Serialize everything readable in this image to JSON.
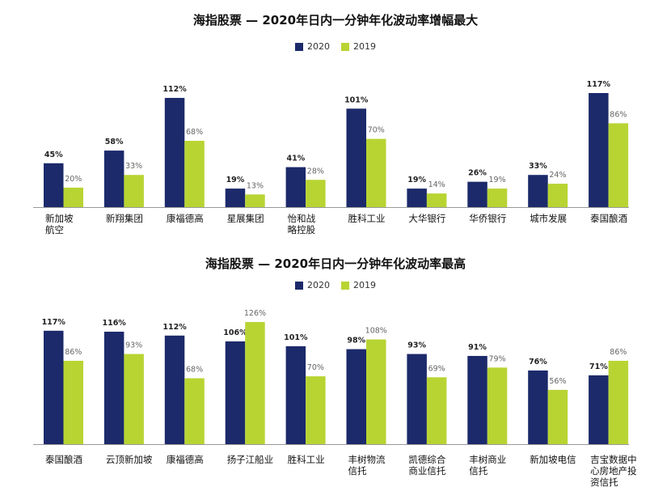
{
  "chart_data": [
    {
      "type": "bar",
      "title": "海指股票 — 2020年日内一分钟年化波动率增幅最大",
      "categories": [
        [
          "新加坡",
          "航空"
        ],
        [
          "新翔集团"
        ],
        [
          "康福德高"
        ],
        [
          "星展集团"
        ],
        [
          "怡和战",
          "略控股"
        ],
        [
          "胜科工业"
        ],
        [
          "大华银行"
        ],
        [
          "华侨银行"
        ],
        [
          "城市发展"
        ],
        [
          "泰国酿酒"
        ]
      ],
      "series": [
        {
          "name": "2020",
          "values": [
            45,
            58,
            112,
            19,
            41,
            101,
            19,
            26,
            33,
            117
          ],
          "labels": [
            "45%",
            "58%",
            "112%",
            "19%",
            "41%",
            "101%",
            "19%",
            "26%",
            "33%",
            "117%"
          ]
        },
        {
          "name": "2019",
          "values": [
            20,
            33,
            68,
            13,
            28,
            70,
            14,
            19,
            24,
            86
          ],
          "labels": [
            "20%",
            "33%",
            "68%",
            "13%",
            "28%",
            "70%",
            "14%",
            "19%",
            "24%",
            "86%"
          ]
        }
      ],
      "ylim": [
        0,
        117
      ],
      "grid": false,
      "legend": "top-center"
    },
    {
      "type": "bar",
      "title": "海指股票 — 2020年日内一分钟年化波动率最高",
      "categories": [
        [
          "泰国酿酒"
        ],
        [
          "云顶新加坡"
        ],
        [
          "康福德高"
        ],
        [
          "扬子江船业"
        ],
        [
          "胜科工业"
        ],
        [
          "丰树物流",
          "信托"
        ],
        [
          "凯德综合",
          "商业信托"
        ],
        [
          "丰树商业",
          "信托"
        ],
        [
          "新加坡电信"
        ],
        [
          "吉宝数据中",
          "心房地产投",
          "资信托"
        ]
      ],
      "series": [
        {
          "name": "2020",
          "values": [
            117,
            116,
            112,
            106,
            101,
            98,
            93,
            91,
            76,
            71
          ],
          "labels": [
            "117%",
            "116%",
            "112%",
            "106%",
            "101%",
            "98%",
            "93%",
            "91%",
            "76%",
            "71%"
          ]
        },
        {
          "name": "2019",
          "values": [
            86,
            93,
            68,
            126,
            70,
            108,
            69,
            79,
            56,
            86
          ],
          "labels": [
            "86%",
            "93%",
            "68%",
            "126%",
            "70%",
            "108%",
            "69%",
            "79%",
            "56%",
            "86%"
          ]
        }
      ],
      "ylim": [
        0,
        126
      ],
      "grid": false,
      "legend": "top-center"
    }
  ],
  "colors": {
    "s2020": "#1c2a6b",
    "s2019": "#b8d433",
    "axis": "#9a9a9a"
  }
}
